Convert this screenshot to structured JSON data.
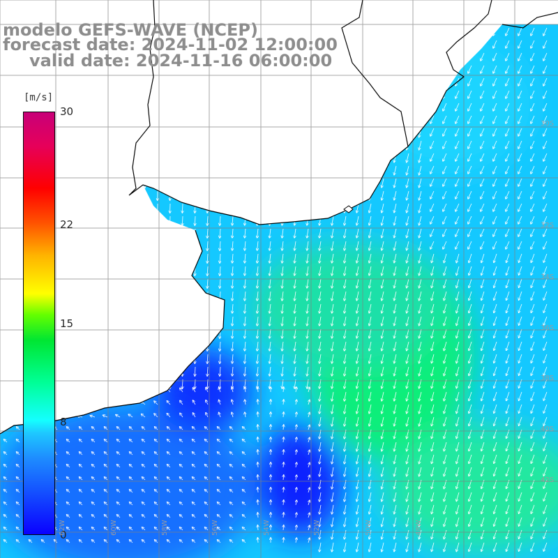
{
  "title": {
    "line1": "modelo GEFS-WAVE (NCEP)",
    "line2": "forecast date: 2024-11-02 12:00:00",
    "line3": "valid date: 2024-11-16 06:00:00"
  },
  "colorbar": {
    "unit": "[m/s]",
    "ticks": [
      {
        "label": "30",
        "value": 30
      },
      {
        "label": "22",
        "value": 22
      },
      {
        "label": "15",
        "value": 15
      },
      {
        "label": "8",
        "value": 8
      },
      {
        "label": "0",
        "value": 0
      }
    ],
    "min": 0,
    "max": 30
  },
  "map": {
    "lat_labels": [
      "30S",
      "32S",
      "34S",
      "36S",
      "38S",
      "40S",
      "42S"
    ],
    "lon_labels": [
      "62W",
      "60W",
      "58W",
      "56W",
      "54W",
      "52W",
      "50W",
      "48W"
    ],
    "colors": {
      "calm": "#0a32ff",
      "moderate": "#14c8ff",
      "strong": "#00ff64",
      "coast": "#000000",
      "grid": "#808080",
      "arrow": "#ffffff"
    }
  }
}
